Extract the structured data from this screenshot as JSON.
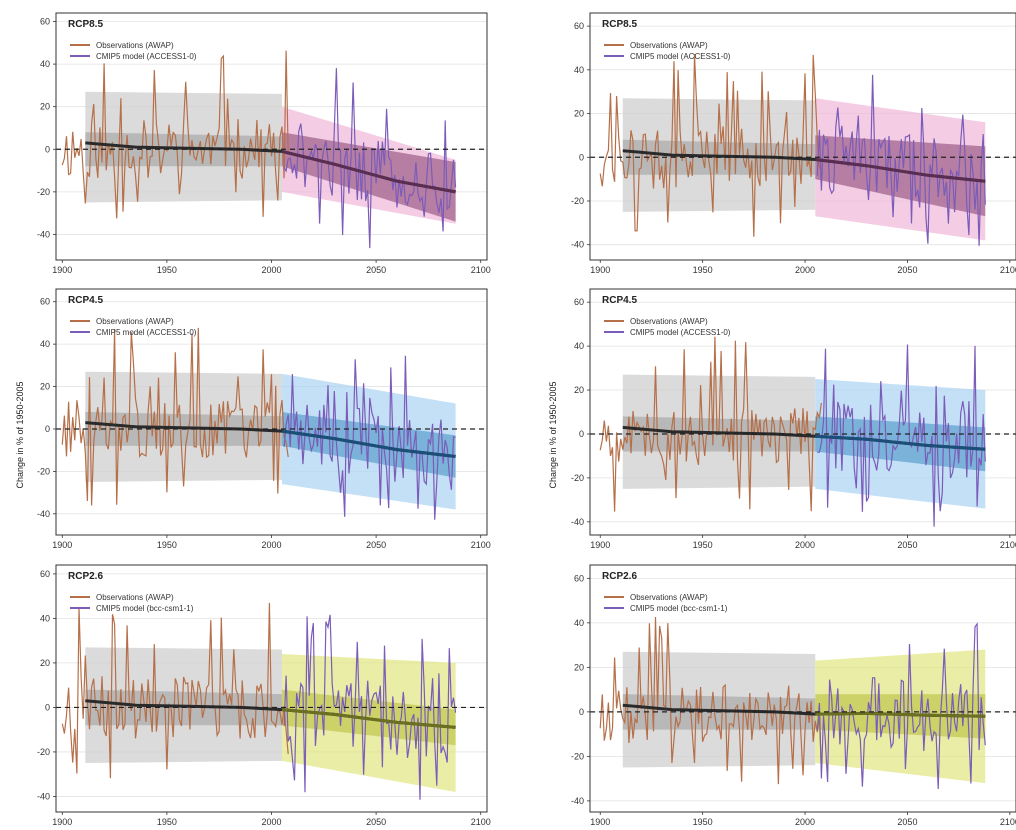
{
  "figure": {
    "ylabel": "Change in % of 1950-2005",
    "colors": {
      "obs": "#b5704a",
      "model": "#7b5cb8",
      "hist_band": "#cfcfcf",
      "hist_inner": "#9a9a9a",
      "zero_line": "#222222",
      "RCP8.5": {
        "outer": "#efb8d8",
        "inner": "#8e4a78",
        "median": "#5a2e52"
      },
      "RCP4.5": {
        "outer": "#a9d3f2",
        "inner": "#4a92c8",
        "median": "#1b4f7a"
      },
      "RCP2.6": {
        "outer": "#e1e680",
        "inner": "#b8bf40",
        "median": "#6a7020"
      }
    }
  },
  "chart_data": [
    {
      "type": "line",
      "id": "L1",
      "title": "RCP8.5",
      "scenario": "RCP8.5",
      "column": "left",
      "row": 0,
      "legend": [
        "Observations (AWAP)",
        "CMIP5 model (ACCESS1-0)"
      ],
      "xlim": [
        1897,
        2103
      ],
      "ylim": [
        -52,
        64
      ],
      "xticks": [
        1900,
        1950,
        2000,
        2050,
        2100
      ],
      "yticks": [
        -40,
        -20,
        0,
        20,
        40,
        60
      ],
      "grid": true,
      "legend_position": "top-left",
      "future_outer_start": 20,
      "future_outer_end": 10,
      "future_inner_start": 8,
      "future_inner_end": 14,
      "median_end": -20,
      "obs_seed": 11,
      "model_seed": 21
    },
    {
      "type": "line",
      "id": "R1",
      "title": "RCP8.5",
      "scenario": "RCP8.5",
      "column": "right",
      "row": 0,
      "legend": [
        "Observations (AWAP)",
        "CMIP5 model (ACCESS1-0)"
      ],
      "xlim": [
        1895,
        2103
      ],
      "ylim": [
        -47,
        66
      ],
      "xticks": [
        1900,
        1950,
        2000,
        2050,
        2100
      ],
      "yticks": [
        -40,
        -20,
        0,
        20,
        40,
        60
      ],
      "grid": true,
      "legend_position": "top-left",
      "future_outer_start": 27,
      "future_outer_end": 22,
      "future_inner_start": 10,
      "future_inner_end": 16,
      "median_end": -11,
      "obs_seed": 12,
      "model_seed": 22
    },
    {
      "type": "line",
      "id": "L2",
      "title": "RCP4.5",
      "scenario": "RCP4.5",
      "column": "left",
      "row": 1,
      "legend": [
        "Observations (AWAP)",
        "CMIP5 model (ACCESS1-0)"
      ],
      "xlim": [
        1897,
        2103
      ],
      "ylim": [
        -50,
        66
      ],
      "xticks": [
        1900,
        1950,
        2000,
        2050,
        2100
      ],
      "yticks": [
        -40,
        -20,
        0,
        20,
        40,
        60
      ],
      "grid": true,
      "legend_position": "top-left",
      "future_outer_start": 26,
      "future_outer_end": 20,
      "future_inner_start": 8,
      "future_inner_end": 10,
      "median_end": -13,
      "obs_seed": 13,
      "model_seed": 23
    },
    {
      "type": "line",
      "id": "R2",
      "title": "RCP4.5",
      "scenario": "RCP4.5",
      "column": "right",
      "row": 1,
      "legend": [
        "Observations (AWAP)",
        "CMIP5 model (ACCESS1-0)"
      ],
      "xlim": [
        1895,
        2103
      ],
      "ylim": [
        -46,
        66
      ],
      "xticks": [
        1900,
        1950,
        2000,
        2050,
        2100
      ],
      "yticks": [
        -40,
        -20,
        0,
        20,
        40,
        60
      ],
      "grid": true,
      "legend_position": "top-left",
      "future_outer_start": 25,
      "future_outer_end": 22,
      "future_inner_start": 8,
      "future_inner_end": 10,
      "median_end": -7,
      "obs_seed": 14,
      "model_seed": 24
    },
    {
      "type": "line",
      "id": "L3",
      "title": "RCP2.6",
      "scenario": "RCP2.6",
      "column": "left",
      "row": 2,
      "legend": [
        "Observations (AWAP)",
        "CMIP5 model (bcc-csm1-1)"
      ],
      "xlim": [
        1897,
        2103
      ],
      "ylim": [
        -47,
        64
      ],
      "xticks": [
        1900,
        1950,
        2000,
        2050,
        2100
      ],
      "yticks": [
        -40,
        -20,
        0,
        20,
        40,
        60
      ],
      "grid": true,
      "legend_position": "top-left",
      "future_outer_start": 24,
      "future_outer_end": 24,
      "future_inner_start": 8,
      "future_inner_end": 8,
      "median_end": -9,
      "obs_seed": 15,
      "model_seed": 25
    },
    {
      "type": "line",
      "id": "R3",
      "title": "RCP2.6",
      "scenario": "RCP2.6",
      "column": "right",
      "row": 2,
      "legend": [
        "Observations (AWAP)",
        "CMIP5 model (bcc-csm1-1)"
      ],
      "xlim": [
        1895,
        2103
      ],
      "ylim": [
        -45,
        66
      ],
      "xticks": [
        1900,
        1950,
        2000,
        2050,
        2100
      ],
      "yticks": [
        -40,
        -20,
        0,
        20,
        40,
        60
      ],
      "grid": true,
      "legend_position": "top-left",
      "future_outer_start": 23,
      "future_outer_end": 25,
      "future_inner_start": 8,
      "future_inner_end": 10,
      "median_end": -2,
      "obs_seed": 16,
      "model_seed": 26
    }
  ]
}
